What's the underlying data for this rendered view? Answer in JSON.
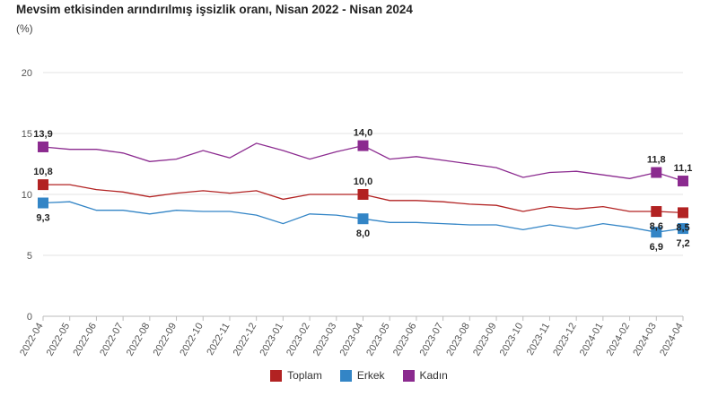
{
  "chart_data": {
    "type": "line",
    "title": "Mevsim etkisinden arındırılmış işsizlik oranı, Nisan 2022 - Nisan 2024",
    "subtitle": "(%)",
    "xlabel": "",
    "ylabel": "",
    "ylim": [
      0,
      20
    ],
    "yticks": [
      0,
      5,
      10,
      15,
      20
    ],
    "categories": [
      "2022-04",
      "2022-05",
      "2022-06",
      "2022-07",
      "2022-08",
      "2022-09",
      "2022-10",
      "2022-11",
      "2022-12",
      "2023-01",
      "2023-02",
      "2023-03",
      "2023-04",
      "2023-05",
      "2023-06",
      "2023-07",
      "2023-08",
      "2023-09",
      "2023-10",
      "2023-11",
      "2023-12",
      "2024-01",
      "2024-02",
      "2024-03",
      "2024-04"
    ],
    "series": [
      {
        "name": "Toplam",
        "color": "#b22222",
        "values": [
          10.8,
          10.8,
          10.4,
          10.2,
          9.8,
          10.1,
          10.3,
          10.1,
          10.3,
          9.6,
          10.0,
          10.0,
          10.0,
          9.5,
          9.5,
          9.4,
          9.2,
          9.1,
          8.6,
          9.0,
          8.8,
          9.0,
          8.6,
          8.6,
          8.5
        ],
        "labeled": [
          {
            "index": 0,
            "text": "10,8",
            "pos": "above"
          },
          {
            "index": 12,
            "text": "10,0",
            "pos": "above"
          },
          {
            "index": 23,
            "text": "8,6",
            "pos": "below"
          },
          {
            "index": 24,
            "text": "8,5",
            "pos": "below"
          }
        ]
      },
      {
        "name": "Erkek",
        "color": "#3385c6",
        "values": [
          9.3,
          9.4,
          8.7,
          8.7,
          8.4,
          8.7,
          8.6,
          8.6,
          8.3,
          7.6,
          8.4,
          8.3,
          8.0,
          7.7,
          7.7,
          7.6,
          7.5,
          7.5,
          7.1,
          7.5,
          7.2,
          7.6,
          7.3,
          6.9,
          7.2
        ],
        "labeled": [
          {
            "index": 0,
            "text": "9,3",
            "pos": "below"
          },
          {
            "index": 12,
            "text": "8,0",
            "pos": "below"
          },
          {
            "index": 23,
            "text": "6,9",
            "pos": "below"
          },
          {
            "index": 24,
            "text": "7,2",
            "pos": "below"
          }
        ]
      },
      {
        "name": "Kadın",
        "color": "#8b2a8f",
        "values": [
          13.9,
          13.7,
          13.7,
          13.4,
          12.7,
          12.9,
          13.6,
          13.0,
          14.2,
          13.6,
          12.9,
          13.5,
          14.0,
          12.9,
          13.1,
          12.8,
          12.5,
          12.2,
          11.4,
          11.8,
          11.9,
          11.6,
          11.3,
          11.8,
          11.1
        ],
        "labeled": [
          {
            "index": 0,
            "text": "13,9",
            "pos": "above"
          },
          {
            "index": 12,
            "text": "14,0",
            "pos": "above"
          },
          {
            "index": 23,
            "text": "11,8",
            "pos": "above"
          },
          {
            "index": 24,
            "text": "11,1",
            "pos": "above"
          }
        ]
      }
    ],
    "legend": [
      "Toplam",
      "Erkek",
      "Kadın"
    ],
    "legend_position": "bottom-center",
    "grid": "horizontal"
  }
}
